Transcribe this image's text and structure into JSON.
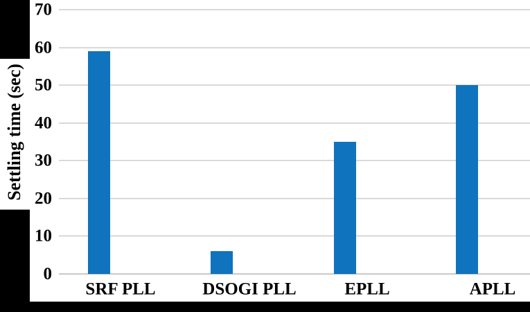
{
  "figure": {
    "background": "#FFFFFF",
    "margin_color": "#000000"
  },
  "chart_data": {
    "type": "bar",
    "title": "",
    "xlabel": "",
    "ylabel": "Settling time (sec)",
    "categories": [
      "SRF PLL",
      "DSOGI PLL",
      "EPLL",
      "APLL"
    ],
    "values": [
      59,
      6,
      35,
      50
    ],
    "ylim": [
      0,
      70
    ],
    "yticks": [
      0,
      10,
      20,
      30,
      40,
      50,
      60,
      70
    ],
    "grid": true,
    "legend": false,
    "bar_color": "#1073BD",
    "gridline_color": "#D9D9D9",
    "axis_line_color": "#C9C9C9",
    "text_color": "#000000"
  }
}
